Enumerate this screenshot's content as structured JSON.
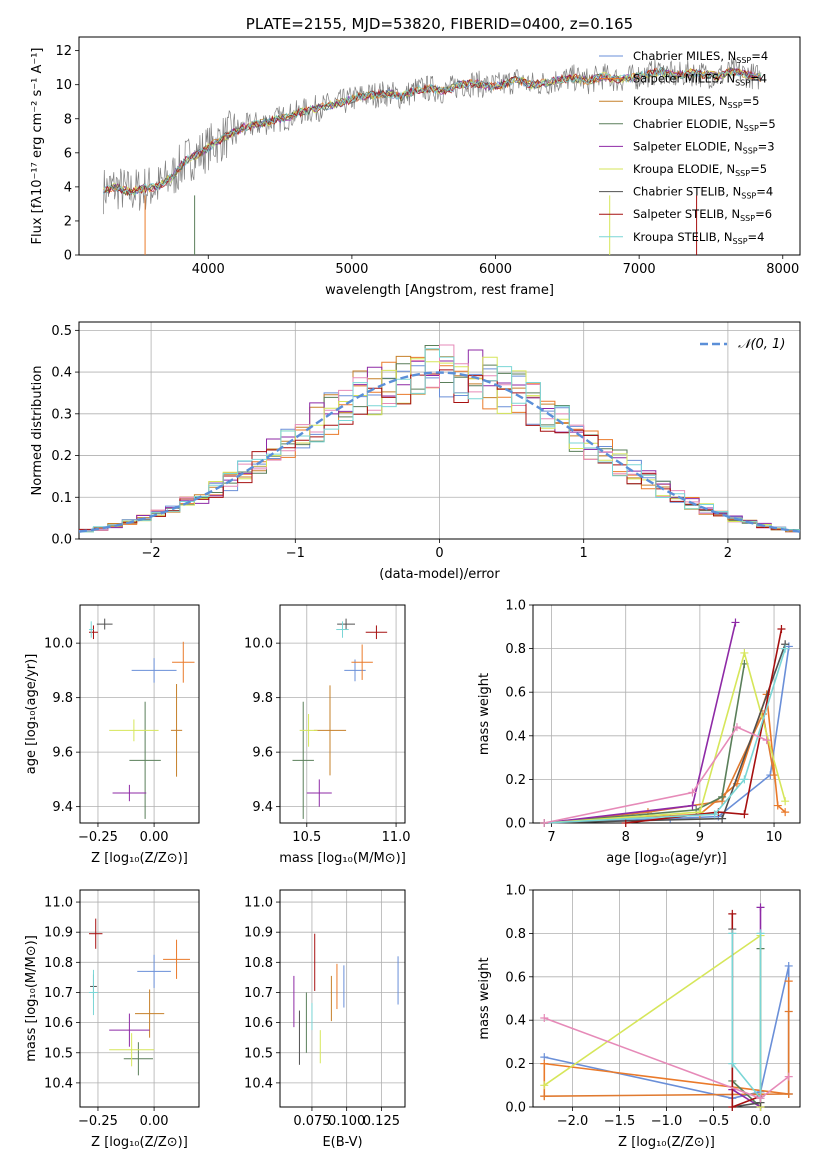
{
  "palette": [
    "#6a8fd8",
    "#ea7a2a",
    "#c6802a",
    "#5a7f5a",
    "#8e2aa6",
    "#d6e65a",
    "#505050",
    "#a61010",
    "#7ad6d6"
  ],
  "chart_data": [
    {
      "type": "line",
      "title": "PLATE=2155, MJD=53820, FIBERID=0400, z=0.165",
      "xlabel": "wavelength [Angstrom, rest frame]",
      "ylabel": "Flux [fλ10⁻¹⁷ erg cm⁻² s⁻¹ A⁻¹]",
      "xlim": [
        3100,
        8120
      ],
      "ylim": [
        0,
        12.8
      ],
      "xticks": [
        4000,
        5000,
        6000,
        7000,
        8000
      ],
      "yticks": [
        0,
        2,
        4,
        6,
        8,
        10,
        12
      ],
      "grid": false,
      "legend": "right",
      "data_series": {
        "name": "",
        "color": "#808080",
        "x": [
          3270,
          3350,
          3450,
          3550,
          3650,
          3750,
          3850,
          3950,
          4050,
          4150,
          4250,
          4350,
          4450,
          4550,
          4650,
          4750,
          4850,
          4950,
          5050,
          5150,
          5250,
          5350,
          5450,
          5550,
          5650,
          5750,
          5850,
          5950,
          6050,
          6150,
          6250,
          6350,
          6450,
          6550,
          6650,
          6750,
          6850,
          6950,
          7050,
          7150,
          7250,
          7350,
          7450,
          7550,
          7650,
          7750,
          7850
        ],
        "y": [
          3.8,
          4.0,
          3.7,
          3.9,
          4.0,
          4.6,
          5.6,
          6.0,
          6.6,
          7.1,
          7.5,
          7.7,
          7.9,
          8.1,
          8.4,
          8.6,
          8.8,
          9.0,
          9.3,
          9.4,
          9.5,
          9.3,
          9.7,
          9.8,
          9.6,
          10.0,
          10.1,
          9.9,
          10.0,
          10.3,
          10.0,
          10.1,
          10.3,
          10.4,
          10.2,
          10.5,
          10.3,
          10.4,
          10.6,
          10.8,
          10.5,
          10.7,
          10.6,
          10.5,
          10.8,
          10.6,
          10.4
        ]
      },
      "models": [
        {
          "name": "Chabrier MILES, N_SSP=4"
        },
        {
          "name": "Salpeter MILES, N_SSP=4"
        },
        {
          "name": "Kroupa MILES, N_SSP=5"
        },
        {
          "name": "Chabrier ELODIE, N_SSP=5"
        },
        {
          "name": "Salpeter ELODIE, N_SSP=3"
        },
        {
          "name": "Kroupa ELODIE, N_SSP=5"
        },
        {
          "name": "Chabrier STELIB, N_SSP=4"
        },
        {
          "name": "Salpeter STELIB, N_SSP=6"
        },
        {
          "name": "Kroupa STELIB, N_SSP=4"
        }
      ]
    },
    {
      "type": "bar",
      "xlabel": "(data-model)/error",
      "ylabel": "Normed distribution",
      "xlim": [
        -2.5,
        2.5
      ],
      "ylim": [
        0,
        0.52
      ],
      "xticks": [
        -2,
        -1,
        0,
        1,
        2
      ],
      "yticks": [
        0.0,
        0.1,
        0.2,
        0.3,
        0.4,
        0.5
      ],
      "grid": true,
      "legend": "top-right",
      "reference": {
        "name": "𝒩(0, 1)",
        "color": "#5b8fd8",
        "mean": 0,
        "std": 1
      },
      "bin_width": 0.1
    },
    {
      "type": "scatter",
      "xlabel": "Z [log₁₀(Z/Z⊙)]",
      "ylabel": "age  [log₁₀(age/yr)]",
      "xlim": [
        -0.33,
        0.2
      ],
      "ylim": [
        9.34,
        10.14
      ],
      "xticks": [
        -0.25,
        0.0
      ],
      "xticklabels": [
        "−0.25",
        "0.00"
      ],
      "yticks": [
        9.4,
        9.6,
        9.8,
        10.0
      ],
      "grid": true,
      "points": [
        {
          "x": 0.0,
          "xe": 0.2,
          "y": 9.9,
          "ye": 0.09
        },
        {
          "x": 0.13,
          "xe": 0.1,
          "y": 9.93,
          "ye": 0.15
        },
        {
          "x": 0.1,
          "xe": 0.05,
          "y": 9.68,
          "ye": 0.34
        },
        {
          "x": -0.04,
          "xe": 0.14,
          "y": 9.57,
          "ye": 0.43
        },
        {
          "x": -0.11,
          "xe": 0.15,
          "y": 9.45,
          "ye": 0.06
        },
        {
          "x": -0.09,
          "xe": 0.22,
          "y": 9.68,
          "ye": 0.08
        },
        {
          "x": -0.22,
          "xe": 0.07,
          "y": 10.07,
          "ye": 0.04
        },
        {
          "x": -0.27,
          "xe": 0.04,
          "y": 10.04,
          "ye": 0.05
        },
        {
          "x": -0.28,
          "xe": 0.02,
          "y": 10.05,
          "ye": 0.06
        }
      ]
    },
    {
      "type": "scatter",
      "xlabel": "mass [log₁₀(M/M⊙)]",
      "ylabel": "",
      "xlim": [
        10.35,
        11.05
      ],
      "ylim": [
        9.34,
        10.14
      ],
      "xticks": [
        10.5,
        11.0
      ],
      "xticklabels": [
        "10.5",
        "11.0"
      ],
      "yticks": [
        9.4,
        9.6,
        9.8,
        10.0
      ],
      "grid": true,
      "points": [
        {
          "x": 10.77,
          "xe": 0.12,
          "y": 9.9,
          "ye": 0.08
        },
        {
          "x": 10.81,
          "xe": 0.12,
          "y": 9.93,
          "ye": 0.13
        },
        {
          "x": 10.63,
          "xe": 0.18,
          "y": 9.68,
          "ye": 0.33
        },
        {
          "x": 10.48,
          "xe": 0.12,
          "y": 9.57,
          "ye": 0.43
        },
        {
          "x": 10.57,
          "xe": 0.14,
          "y": 9.45,
          "ye": 0.1
        },
        {
          "x": 10.51,
          "xe": 0.1,
          "y": 9.68,
          "ye": 0.12
        },
        {
          "x": 10.72,
          "xe": 0.1,
          "y": 10.07,
          "ye": 0.04
        },
        {
          "x": 10.89,
          "xe": 0.12,
          "y": 10.04,
          "ye": 0.05
        },
        {
          "x": 10.7,
          "xe": 0.07,
          "y": 10.05,
          "ye": 0.06
        }
      ]
    },
    {
      "type": "line",
      "xlabel": "age  [log₁₀(age/yr)]",
      "ylabel": "mass weight",
      "xlim": [
        6.75,
        10.35
      ],
      "ylim": [
        0.0,
        1.0
      ],
      "xticks": [
        7,
        8,
        9,
        10
      ],
      "yticks": [
        0.0,
        0.2,
        0.4,
        0.6,
        0.8,
        1.0
      ],
      "grid": true,
      "series": [
        {
          "x": [
            6.9,
            8.6,
            9.25,
            9.95,
            10.2
          ],
          "y": [
            0.0,
            0.02,
            0.03,
            0.22,
            0.81
          ]
        },
        {
          "x": [
            6.9,
            9.0,
            9.5,
            9.9,
            10.05,
            10.15
          ],
          "y": [
            0.0,
            0.04,
            0.18,
            0.59,
            0.08,
            0.05
          ]
        },
        {
          "x": [
            6.9,
            8.3,
            9.3,
            9.85,
            10.0
          ],
          "y": [
            0.0,
            0.05,
            0.1,
            0.5,
            0.22
          ]
        },
        {
          "x": [
            6.9,
            8.95,
            9.3,
            9.6
          ],
          "y": [
            0.0,
            0.06,
            0.12,
            0.73
          ]
        },
        {
          "x": [
            6.9,
            8.9,
            9.48
          ],
          "y": [
            0.0,
            0.08,
            0.92
          ]
        },
        {
          "x": [
            6.9,
            9.0,
            9.6,
            10.15
          ],
          "y": [
            0.0,
            0.05,
            0.78,
            0.1
          ]
        },
        {
          "x": [
            6.9,
            9.3,
            10.15
          ],
          "y": [
            0.0,
            0.02,
            0.82
          ]
        },
        {
          "x": [
            8.0,
            9.25,
            9.6,
            10.1
          ],
          "y": [
            0.0,
            0.05,
            0.04,
            0.89
          ]
        },
        {
          "x": [
            6.9,
            9.2,
            9.6,
            10.15
          ],
          "y": [
            0.0,
            0.04,
            0.2,
            0.8
          ]
        },
        {
          "x": [
            6.9,
            8.9,
            9.5,
            9.9
          ],
          "y": [
            0.0,
            0.14,
            0.44,
            0.38
          ]
        }
      ]
    },
    {
      "type": "scatter",
      "xlabel": "Z [log₁₀(Z/Z⊙)]",
      "ylabel": "mass [log₁₀(M/M⊙)]",
      "xlim": [
        -0.33,
        0.2
      ],
      "ylim": [
        10.32,
        11.04
      ],
      "xticks": [
        -0.25,
        0.0
      ],
      "xticklabels": [
        "−0.25",
        "0.00"
      ],
      "yticks": [
        10.4,
        10.5,
        10.6,
        10.7,
        10.8,
        10.9,
        11.0
      ],
      "grid": true,
      "points": [
        {
          "x": 0.0,
          "xe": 0.15,
          "y": 10.77,
          "ye": 0.11
        },
        {
          "x": 0.1,
          "xe": 0.12,
          "y": 10.81,
          "ye": 0.13
        },
        {
          "x": -0.02,
          "xe": 0.13,
          "y": 10.63,
          "ye": 0.16
        },
        {
          "x": -0.07,
          "xe": 0.13,
          "y": 10.48,
          "ye": 0.11
        },
        {
          "x": -0.11,
          "xe": 0.18,
          "y": 10.575,
          "ye": 0.11
        },
        {
          "x": -0.1,
          "xe": 0.2,
          "y": 10.51,
          "ye": 0.11
        },
        {
          "x": -0.27,
          "xe": 0.03,
          "y": 10.72,
          "ye": 0.08
        },
        {
          "x": -0.26,
          "xe": 0.06,
          "y": 10.895,
          "ye": 0.1
        },
        {
          "x": -0.27,
          "xe": 0.04,
          "y": 10.7,
          "ye": 0.15
        }
      ]
    },
    {
      "type": "scatter",
      "xlabel": "E(B-V)",
      "ylabel": "",
      "xlim": [
        0.052,
        0.142
      ],
      "ylim": [
        10.32,
        11.04
      ],
      "xticks": [
        0.075,
        0.1,
        0.125
      ],
      "xticklabels": [
        "0.075",
        "0.100",
        "0.125"
      ],
      "yticks": [
        10.4,
        10.5,
        10.6,
        10.7,
        10.8,
        10.9,
        11.0
      ],
      "grid": true,
      "points": [
        {
          "x": 0.098,
          "y": 10.72,
          "ye": 0.14
        },
        {
          "x": 0.093,
          "y": 10.72,
          "ye": 0.15
        },
        {
          "x": 0.089,
          "y": 10.68,
          "ye": 0.15
        },
        {
          "x": 0.071,
          "y": 10.6,
          "ye": 0.2
        },
        {
          "x": 0.062,
          "y": 10.67,
          "ye": 0.17
        },
        {
          "x": 0.081,
          "y": 10.52,
          "ye": 0.11
        },
        {
          "x": 0.066,
          "y": 10.55,
          "ye": 0.18
        },
        {
          "x": 0.077,
          "y": 10.8,
          "ye": 0.19
        },
        {
          "x": 0.075,
          "y": 10.62,
          "ye": 0.09
        },
        {
          "x": 0.137,
          "y": 10.74,
          "ye": 0.16
        }
      ]
    },
    {
      "type": "line",
      "xlabel": "Z [log₁₀(Z/Z⊙)]",
      "ylabel": "mass weight",
      "xlim": [
        -2.42,
        0.42
      ],
      "ylim": [
        0.0,
        1.0
      ],
      "xticks": [
        -2.0,
        -1.5,
        -1.0,
        -0.5,
        0.0
      ],
      "xticklabels": [
        "−2.0",
        "−1.5",
        "−1.0",
        "−0.5",
        "0.0"
      ],
      "yticks": [
        0.0,
        0.2,
        0.4,
        0.6,
        0.8,
        1.0
      ],
      "grid": true,
      "series": [
        {
          "x": [
            -2.3,
            -0.3,
            0.0,
            0.3,
            0.3
          ],
          "y": [
            0.23,
            0.04,
            0.07,
            0.65,
            0.06
          ]
        },
        {
          "x": [
            -2.3,
            -2.3,
            0.3,
            0.3
          ],
          "y": [
            0.05,
            0.2,
            0.06,
            0.58
          ]
        },
        {
          "x": [
            -2.3,
            0.3,
            0.3
          ],
          "y": [
            0.05,
            0.06,
            0.44
          ]
        },
        {
          "x": [
            -0.3,
            0.0,
            0.0
          ],
          "y": [
            0.12,
            0.0,
            0.73
          ]
        },
        {
          "x": [
            0.0,
            0.0,
            -0.3
          ],
          "y": [
            0.92,
            0.0,
            0.08
          ]
        },
        {
          "x": [
            -2.3,
            0.0,
            0.0
          ],
          "y": [
            0.1,
            0.79,
            0.0
          ]
        },
        {
          "x": [
            -0.3,
            -0.3,
            0.0
          ],
          "y": [
            0.82,
            0.0,
            0.02
          ]
        },
        {
          "x": [
            -0.3,
            -0.3,
            0.0
          ],
          "y": [
            0.89,
            0.0,
            0.05
          ]
        },
        {
          "x": [
            -0.3,
            -0.3,
            0.0,
            0.0
          ],
          "y": [
            0.8,
            0.2,
            0.04,
            0.8
          ]
        },
        {
          "x": [
            -2.3,
            0.0,
            0.3
          ],
          "y": [
            0.41,
            0.04,
            0.14
          ]
        }
      ]
    }
  ]
}
